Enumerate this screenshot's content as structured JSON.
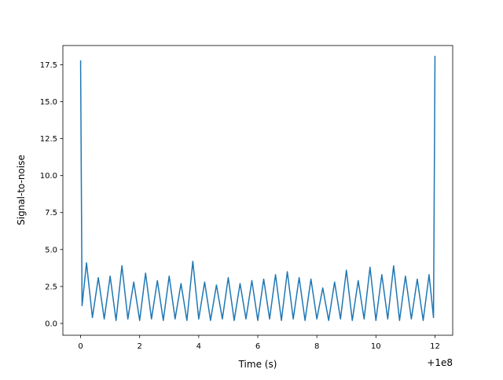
{
  "chart_data": {
    "type": "line",
    "title": "",
    "xlabel": "Time (s)",
    "ylabel": "Signal-to-noise",
    "x_offset_label": "+1e8",
    "xlim": [
      -0.6,
      12.6
    ],
    "ylim": [
      -0.8,
      18.8
    ],
    "xticks": [
      0,
      2,
      4,
      6,
      8,
      10,
      12
    ],
    "xtick_labels": [
      "0",
      "2",
      "4",
      "6",
      "8",
      "10",
      "12"
    ],
    "yticks": [
      0.0,
      2.5,
      5.0,
      7.5,
      10.0,
      12.5,
      15.0,
      17.5
    ],
    "ytick_labels": [
      "0.0",
      "2.5",
      "5.0",
      "7.5",
      "10.0",
      "12.5",
      "15.0",
      "17.5"
    ],
    "grid": false,
    "legend": null,
    "series": [
      {
        "color": "#1f77b4",
        "x": [
          0.0,
          0.05,
          0.2,
          0.4,
          0.6,
          0.8,
          1.0,
          1.2,
          1.4,
          1.6,
          1.8,
          2.0,
          2.2,
          2.4,
          2.6,
          2.8,
          3.0,
          3.2,
          3.4,
          3.6,
          3.8,
          4.0,
          4.2,
          4.4,
          4.6,
          4.8,
          5.0,
          5.2,
          5.4,
          5.6,
          5.8,
          6.0,
          6.2,
          6.4,
          6.6,
          6.8,
          7.0,
          7.2,
          7.4,
          7.6,
          7.8,
          8.0,
          8.2,
          8.4,
          8.6,
          8.8,
          9.0,
          9.2,
          9.4,
          9.6,
          9.8,
          10.0,
          10.2,
          10.4,
          10.6,
          10.8,
          11.0,
          11.2,
          11.4,
          11.6,
          11.8,
          11.95,
          12.0
        ],
        "y": [
          17.8,
          1.2,
          4.1,
          0.4,
          3.1,
          0.3,
          3.2,
          0.2,
          3.9,
          0.3,
          2.8,
          0.2,
          3.4,
          0.3,
          2.9,
          0.2,
          3.2,
          0.3,
          2.7,
          0.2,
          4.2,
          0.3,
          2.8,
          0.2,
          2.6,
          0.3,
          3.1,
          0.2,
          2.7,
          0.3,
          2.9,
          0.2,
          3.0,
          0.3,
          3.3,
          0.2,
          3.5,
          0.3,
          3.1,
          0.2,
          3.0,
          0.3,
          2.4,
          0.2,
          2.8,
          0.3,
          3.6,
          0.2,
          2.9,
          0.3,
          3.8,
          0.2,
          3.3,
          0.3,
          3.9,
          0.2,
          3.2,
          0.3,
          3.0,
          0.2,
          3.3,
          0.4,
          18.1
        ]
      }
    ]
  }
}
